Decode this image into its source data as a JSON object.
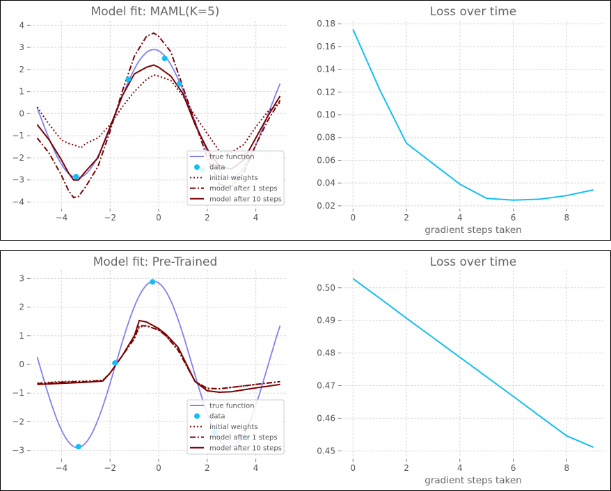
{
  "colors": {
    "true_function": "#8080f0",
    "data": "#10bff5",
    "model": "#7a0000",
    "loss": "#10bff5",
    "grid": "#d8d8d8",
    "tick_text": "#555555",
    "title_text": "#666666"
  },
  "legend_labels": [
    "true function",
    "data",
    "initial weights",
    "model after 1 steps",
    "model after 10 steps"
  ],
  "chart_data": [
    {
      "panel": "top-left",
      "type": "line",
      "title": "Model fit: MAML(K=5)",
      "xlabel": "",
      "ylabel": "",
      "xlim": [
        -5.3,
        5.3
      ],
      "ylim": [
        -4.3,
        4.2
      ],
      "xticks": [
        -4,
        -2,
        0,
        2,
        4
      ],
      "xtick_labels": [
        "−4",
        "−2",
        "0",
        "2",
        "4"
      ],
      "yticks": [
        -4,
        -3,
        -2,
        -1,
        0,
        1,
        2,
        3,
        4
      ],
      "ytick_labels": [
        "−4",
        "−3",
        "−2",
        "−1",
        "0",
        "1",
        "2",
        "3",
        "4"
      ],
      "grid": true,
      "legend_position": "lower-right",
      "sine": {
        "amplitude": 2.9,
        "phase": 1.77,
        "xmin": -5,
        "xmax": 5
      },
      "series": [
        {
          "name": "initial weights",
          "style": "dotted",
          "x": [
            -5,
            -4.5,
            -4,
            -3.7,
            -3.4,
            -3.2,
            -3,
            -2.5,
            -2,
            -1.5,
            -1,
            -0.5,
            -0.2,
            0,
            0.5,
            1,
            1.5,
            2,
            2.5,
            3,
            3.5,
            4,
            4.5,
            5
          ],
          "y": [
            0.3,
            -0.5,
            -1.2,
            -1.35,
            -1.45,
            -1.55,
            -1.35,
            -1.1,
            -0.5,
            0.3,
            1.0,
            1.55,
            1.75,
            1.7,
            1.5,
            0.8,
            -0.1,
            -0.9,
            -1.7,
            -1.75,
            -1.4,
            -0.6,
            0.1,
            0.5
          ]
        },
        {
          "name": "model after 1 steps",
          "style": "dashdot",
          "x": [
            -5,
            -4.5,
            -4,
            -3.7,
            -3.5,
            -3.3,
            -3,
            -2.5,
            -2,
            -1.5,
            -1,
            -0.5,
            -0.2,
            0,
            0.5,
            1,
            1.5,
            2,
            2.5,
            3,
            3.5,
            4,
            4.5,
            5
          ],
          "y": [
            -1.1,
            -1.8,
            -2.8,
            -3.5,
            -3.8,
            -3.75,
            -3.3,
            -2.4,
            -0.8,
            1.0,
            2.6,
            3.5,
            3.65,
            3.5,
            2.8,
            1.2,
            -0.4,
            -2.0,
            -3.2,
            -3.3,
            -2.7,
            -1.4,
            -0.3,
            0.6
          ]
        },
        {
          "name": "model after 10 steps",
          "style": "solid",
          "x": [
            -5,
            -4.5,
            -4,
            -3.7,
            -3.5,
            -3.3,
            -3,
            -2.5,
            -2,
            -1.5,
            -1,
            -0.5,
            -0.2,
            0,
            0.5,
            1,
            1.5,
            2,
            2.5,
            3,
            3.5,
            4,
            4.5,
            5
          ],
          "y": [
            -0.5,
            -1.2,
            -2.1,
            -2.7,
            -3.0,
            -3.0,
            -2.6,
            -2.0,
            -0.6,
            0.8,
            1.8,
            2.1,
            2.2,
            2.1,
            1.7,
            0.9,
            -0.5,
            -1.6,
            -2.4,
            -2.5,
            -2.1,
            -1.1,
            -0.1,
            0.8
          ]
        }
      ],
      "data_points": {
        "x": [
          -3.4,
          -1.25,
          0.25,
          0.85,
          1.8
        ],
        "y": [
          -2.85,
          1.55,
          2.5,
          1.35,
          -2.55
        ]
      }
    },
    {
      "panel": "top-right",
      "type": "line",
      "title": "Loss over time",
      "xlabel": "gradient steps taken",
      "ylabel": "",
      "xlim": [
        -0.45,
        9.45
      ],
      "ylim": [
        0.0175,
        0.1825
      ],
      "xticks": [
        0,
        2,
        4,
        6,
        8
      ],
      "xtick_labels": [
        "0",
        "2",
        "4",
        "6",
        "8"
      ],
      "yticks": [
        0.02,
        0.04,
        0.06,
        0.08,
        0.1,
        0.12,
        0.14,
        0.16,
        0.18
      ],
      "ytick_labels": [
        "0.02",
        "0.04",
        "0.06",
        "0.08",
        "0.10",
        "0.12",
        "0.14",
        "0.16",
        "0.18"
      ],
      "grid": true,
      "x": [
        0,
        1,
        2,
        3,
        4,
        5,
        6,
        7,
        8,
        9
      ],
      "y": [
        0.175,
        0.122,
        0.075,
        0.057,
        0.039,
        0.0265,
        0.025,
        0.0258,
        0.029,
        0.034
      ]
    },
    {
      "panel": "bottom-left",
      "type": "line",
      "title": "Model fit: Pre-Trained",
      "xlabel": "",
      "ylabel": "",
      "xlim": [
        -5.3,
        5.3
      ],
      "ylim": [
        -3.3,
        3.3
      ],
      "xticks": [
        -4,
        -2,
        0,
        2,
        4
      ],
      "xtick_labels": [
        "−4",
        "−2",
        "0",
        "2",
        "4"
      ],
      "yticks": [
        -3,
        -2,
        -1,
        0,
        1,
        2,
        3
      ],
      "ytick_labels": [
        "−3",
        "−2",
        "−1",
        "0",
        "1",
        "2",
        "3"
      ],
      "grid": true,
      "legend_position": "lower-right",
      "sine": {
        "amplitude": 2.9,
        "phase": 1.77,
        "xmin": -5,
        "xmax": 5
      },
      "series": [
        {
          "name": "initial weights",
          "style": "dotted",
          "x": [
            -5,
            -4,
            -3,
            -2.3,
            -2,
            -1.5,
            -1,
            -0.8,
            -0.5,
            0,
            0.3,
            0.8,
            1.5,
            2,
            2.5,
            3,
            4,
            5
          ],
          "y": [
            -0.65,
            -0.6,
            -0.58,
            -0.55,
            -0.3,
            0.3,
            0.9,
            1.3,
            1.35,
            1.2,
            1.0,
            0.5,
            -0.6,
            -0.85,
            -0.85,
            -0.8,
            -0.7,
            -0.6
          ]
        },
        {
          "name": "model after 1 steps",
          "style": "dashdot",
          "x": [
            -5,
            -4,
            -3,
            -2.3,
            -2,
            -1.5,
            -1,
            -0.8,
            -0.5,
            0,
            0.3,
            0.8,
            1.5,
            2,
            2.5,
            3,
            4,
            5
          ],
          "y": [
            -0.67,
            -0.62,
            -0.6,
            -0.56,
            -0.3,
            0.3,
            0.9,
            1.35,
            1.35,
            1.2,
            1.0,
            0.5,
            -0.6,
            -0.83,
            -0.85,
            -0.8,
            -0.7,
            -0.6
          ]
        },
        {
          "name": "model after 10 steps",
          "style": "solid",
          "x": [
            -5,
            -4,
            -3,
            -2.3,
            -2,
            -1.5,
            -1,
            -0.8,
            -0.5,
            0,
            0.3,
            0.8,
            1.5,
            2,
            2.5,
            3,
            4,
            5
          ],
          "y": [
            -0.7,
            -0.66,
            -0.62,
            -0.58,
            -0.3,
            0.3,
            1.0,
            1.53,
            1.48,
            1.25,
            1.05,
            0.6,
            -0.6,
            -0.92,
            -0.97,
            -0.95,
            -0.82,
            -0.7
          ]
        }
      ],
      "data_points": {
        "x": [
          -3.3,
          -1.8,
          -0.25,
          2.3,
          3.6
        ],
        "y": [
          -2.87,
          0.05,
          2.88,
          -2.35,
          -2.55
        ]
      }
    },
    {
      "panel": "bottom-right",
      "type": "line",
      "title": "Loss over time",
      "xlabel": "gradient steps taken",
      "ylabel": "",
      "xlim": [
        -0.45,
        9.45
      ],
      "ylim": [
        0.4475,
        0.5055
      ],
      "xticks": [
        0,
        2,
        4,
        6,
        8
      ],
      "xtick_labels": [
        "0",
        "2",
        "4",
        "6",
        "8"
      ],
      "yticks": [
        0.45,
        0.46,
        0.47,
        0.48,
        0.49,
        0.5
      ],
      "ytick_labels": [
        "0.45",
        "0.46",
        "0.47",
        "0.48",
        "0.49",
        "0.50"
      ],
      "grid": true,
      "x": [
        0,
        1,
        2,
        3,
        4,
        5,
        6,
        7,
        8,
        9
      ],
      "y": [
        0.5028,
        0.4968,
        0.4907,
        0.4847,
        0.4787,
        0.4727,
        0.4667,
        0.4606,
        0.4546,
        0.4511
      ]
    }
  ]
}
